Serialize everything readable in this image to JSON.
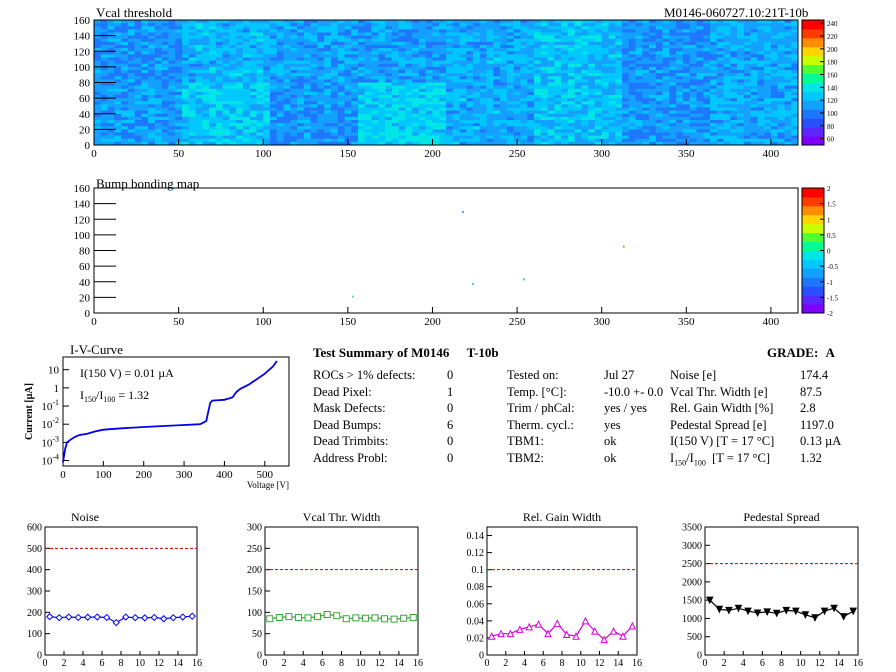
{
  "header": {
    "left_title": "Vcal threshold",
    "right_title": "M0146-060727.10:21T-10b"
  },
  "chart_data": [
    {
      "type": "heatmap",
      "title": "Vcal threshold",
      "xticks": [
        "0",
        "50",
        "100",
        "150",
        "200",
        "250",
        "300",
        "350",
        "400"
      ],
      "yticks": [
        "0",
        "20",
        "40",
        "60",
        "80",
        "100",
        "120",
        "140",
        "160"
      ],
      "xlim": [
        0,
        416
      ],
      "ylim": [
        0,
        160
      ],
      "colorbar_ticks": [
        "60",
        "80",
        "100",
        "120",
        "140",
        "160",
        "180",
        "200",
        "220",
        "240"
      ],
      "colorbar_range": [
        50,
        245
      ]
    },
    {
      "type": "heatmap",
      "title": "Bump bonding map",
      "xticks": [
        "0",
        "50",
        "100",
        "150",
        "200",
        "250",
        "300",
        "350",
        "400"
      ],
      "yticks": [
        "0",
        "20",
        "40",
        "60",
        "80",
        "100",
        "120",
        "140",
        "160"
      ],
      "xlim": [
        0,
        416
      ],
      "ylim": [
        0,
        160
      ],
      "colorbar_ticks": [
        "-2",
        "-1.5",
        "-1",
        "-0.5",
        "0",
        "0.5",
        "1",
        "1.5",
        "2"
      ],
      "colorbar_range": [
        -2,
        2
      ],
      "points": [
        {
          "x": 46,
          "y": 158,
          "color": "#40c8ff"
        },
        {
          "x": 218,
          "y": 129,
          "color": "#3aa0ff"
        },
        {
          "x": 313,
          "y": 85,
          "color": "#e0a010"
        },
        {
          "x": 254,
          "y": 43,
          "color": "#40c8ff"
        },
        {
          "x": 224,
          "y": 37,
          "color": "#40c8ff"
        },
        {
          "x": 153,
          "y": 21,
          "color": "#60d0d0"
        }
      ]
    },
    {
      "type": "line",
      "title": "I-V-Curve",
      "xlabel": "Voltage [V]",
      "ylabel": "Current [µA]",
      "xticks": [
        "0",
        "100",
        "200",
        "300",
        "400",
        "500"
      ],
      "xlim": [
        0,
        560
      ],
      "yscale": "log",
      "ylim": [
        5e-05,
        50
      ],
      "annotation_1": "I(150 V) = 0.01 µA",
      "annotation_2_base": "I",
      "annotation_2_sub": "150",
      "annotation_2_mid": "/I",
      "annotation_2_sub2": "100",
      "annotation_2_value": "=  1.32",
      "x": [
        0,
        5,
        10,
        20,
        30,
        40,
        60,
        80,
        100,
        150,
        200,
        250,
        300,
        340,
        355,
        360,
        365,
        370,
        400,
        420,
        430,
        440,
        460,
        480,
        500,
        520,
        530
      ],
      "y": [
        8e-05,
        0.0004,
        0.001,
        0.0015,
        0.002,
        0.0025,
        0.003,
        0.004,
        0.005,
        0.006,
        0.007,
        0.008,
        0.009,
        0.01,
        0.015,
        0.05,
        0.15,
        0.2,
        0.22,
        0.3,
        0.6,
        0.9,
        1.5,
        3,
        6,
        15,
        30
      ]
    },
    {
      "type": "line",
      "title": "Noise",
      "x": [
        0,
        1,
        2,
        3,
        4,
        5,
        6,
        7,
        8,
        9,
        10,
        11,
        12,
        13,
        14,
        15
      ],
      "values": [
        180,
        175,
        178,
        176,
        177,
        178,
        176,
        152,
        178,
        175,
        174,
        176,
        170,
        175,
        178,
        182
      ],
      "ylim": [
        0,
        600
      ],
      "yticks": [
        "0",
        "100",
        "200",
        "300",
        "400",
        "500",
        "600"
      ],
      "xticks": [
        "0",
        "2",
        "4",
        "6",
        "8",
        "10",
        "12",
        "14",
        "16"
      ],
      "xlim": [
        0,
        16
      ],
      "threshold": 500,
      "color": "#0000ff",
      "marker": "diamond"
    },
    {
      "type": "line",
      "title": "Vcal Thr. Width",
      "x": [
        0,
        1,
        2,
        3,
        4,
        5,
        6,
        7,
        8,
        9,
        10,
        11,
        12,
        13,
        14,
        15
      ],
      "values": [
        85,
        88,
        90,
        88,
        87,
        90,
        95,
        92,
        85,
        87,
        86,
        87,
        85,
        84,
        86,
        88
      ],
      "ylim": [
        0,
        300
      ],
      "yticks": [
        "0",
        "50",
        "100",
        "150",
        "200",
        "250",
        "300"
      ],
      "xticks": [
        "0",
        "2",
        "4",
        "6",
        "8",
        "10",
        "12",
        "14",
        "16"
      ],
      "xlim": [
        0,
        16
      ],
      "threshold": 200,
      "color": "#33aa33",
      "marker": "square"
    },
    {
      "type": "line",
      "title": "Rel. Gain Width",
      "x": [
        0,
        1,
        2,
        3,
        4,
        5,
        6,
        7,
        8,
        9,
        10,
        11,
        12,
        13,
        14,
        15
      ],
      "values": [
        0.022,
        0.025,
        0.025,
        0.03,
        0.033,
        0.036,
        0.025,
        0.037,
        0.024,
        0.022,
        0.04,
        0.028,
        0.018,
        0.028,
        0.022,
        0.034
      ],
      "ylim": [
        0,
        0.15
      ],
      "yticks": [
        "0",
        "0.02",
        "0.04",
        "0.06",
        "0.08",
        "0.1",
        "0.12",
        "0.14"
      ],
      "xticks": [
        "0",
        "2",
        "4",
        "6",
        "8",
        "10",
        "12",
        "14",
        "16"
      ],
      "xlim": [
        0,
        16
      ],
      "threshold": 0.1,
      "color": "#dd00dd",
      "marker": "triangle"
    },
    {
      "type": "line",
      "title": "Pedestal Spread",
      "x": [
        0,
        1,
        2,
        3,
        4,
        5,
        6,
        7,
        8,
        9,
        10,
        11,
        12,
        13,
        14,
        15
      ],
      "values": [
        1500,
        1250,
        1220,
        1280,
        1200,
        1150,
        1180,
        1140,
        1220,
        1200,
        1100,
        1020,
        1200,
        1280,
        1050,
        1200
      ],
      "ylim": [
        0,
        3500
      ],
      "yticks": [
        "0",
        "500",
        "1000",
        "1500",
        "2000",
        "2500",
        "3000",
        "3500"
      ],
      "xticks": [
        "0",
        "2",
        "4",
        "6",
        "8",
        "10",
        "12",
        "14",
        "16"
      ],
      "xlim": [
        0,
        16
      ],
      "threshold": 2500,
      "color": "#000000",
      "marker": "tri-down"
    }
  ],
  "summary": {
    "title": "Test Summary of M0146",
    "tag": "T-10b",
    "grade_label": "GRADE:",
    "grade_value": "A",
    "defects": [
      {
        "label": "ROCs > 1% defects:",
        "value": "0"
      },
      {
        "label": "Dead Pixel:",
        "value": "1"
      },
      {
        "label": "Mask Defects:",
        "value": "0"
      },
      {
        "label": "Dead Bumps:",
        "value": "6"
      },
      {
        "label": "Dead Trimbits:",
        "value": "0"
      },
      {
        "label": "Address Probl:",
        "value": "0"
      }
    ],
    "conditions": [
      {
        "label": "Tested on:",
        "value": "Jul 27"
      },
      {
        "label": "Temp. [°C]:",
        "value": "-10.0 +- 0.0"
      },
      {
        "label": "Trim / phCal:",
        "value": "yes / yes"
      },
      {
        "label": "Therm. cycl.:",
        "value": "yes"
      },
      {
        "label": "TBM1:",
        "value": "ok"
      },
      {
        "label": "TBM2:",
        "value": "ok"
      }
    ],
    "results": [
      {
        "label": "Noise [e]",
        "value": "174.4"
      },
      {
        "label": "Vcal Thr. Width [e]",
        "value": "87.5"
      },
      {
        "label": "Rel. Gain Width [%]",
        "value": "2.8"
      },
      {
        "label": "Pedestal Spread [e]",
        "value": "1197.0"
      },
      {
        "label": "I(150 V) [T = 17 °C]",
        "value": "0.13 µA"
      }
    ],
    "ratio_label": {
      "base": "I",
      "sub1": "150",
      "mid": "/I",
      "sub2": "100",
      "rest": "  [T = 17 °C]"
    },
    "ratio_value": "1.32"
  }
}
